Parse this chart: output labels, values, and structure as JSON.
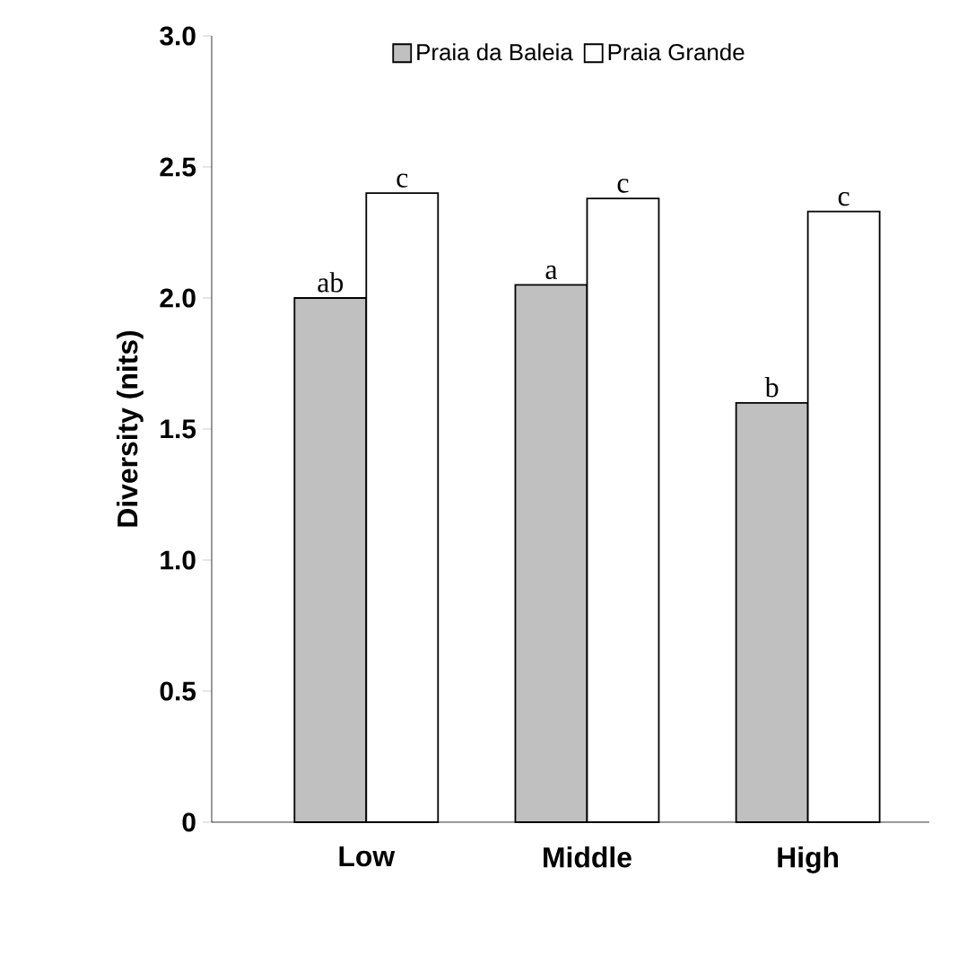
{
  "chart_data": {
    "type": "bar",
    "ylabel": "Diversity (nits)",
    "categories": [
      "Low",
      "Middle",
      "High"
    ],
    "series": [
      {
        "name": "Praia da Baleia",
        "color": "#c0c0c0",
        "values": [
          2.0,
          2.05,
          1.6
        ]
      },
      {
        "name": "Praia Grande",
        "color": "#ffffff",
        "values": [
          2.4,
          2.38,
          2.33
        ]
      }
    ],
    "ylim": [
      0,
      3.0
    ],
    "yticks": [
      {
        "value": 0,
        "label": "0"
      },
      {
        "value": 0.5,
        "label": "0.5"
      },
      {
        "value": 1.0,
        "label": "1.0"
      },
      {
        "value": 1.5,
        "label": "1.5"
      },
      {
        "value": 2.0,
        "label": "2.0"
      },
      {
        "value": 2.5,
        "label": "2.5"
      },
      {
        "value": 3.0,
        "label": "3.0"
      }
    ],
    "annotations": [
      {
        "text": "ab",
        "x": "Low",
        "y": 2.0
      },
      {
        "text": "c",
        "x": "Low",
        "y": 2.4
      },
      {
        "text": "a",
        "x": "Middle",
        "y": 2.05
      },
      {
        "text": "c",
        "x": "Middle",
        "y": 2.38
      },
      {
        "text": "b",
        "x": "High",
        "y": 1.6
      },
      {
        "text": "c",
        "x": "High",
        "y": 2.33
      }
    ],
    "legend": "top",
    "grid": false
  }
}
